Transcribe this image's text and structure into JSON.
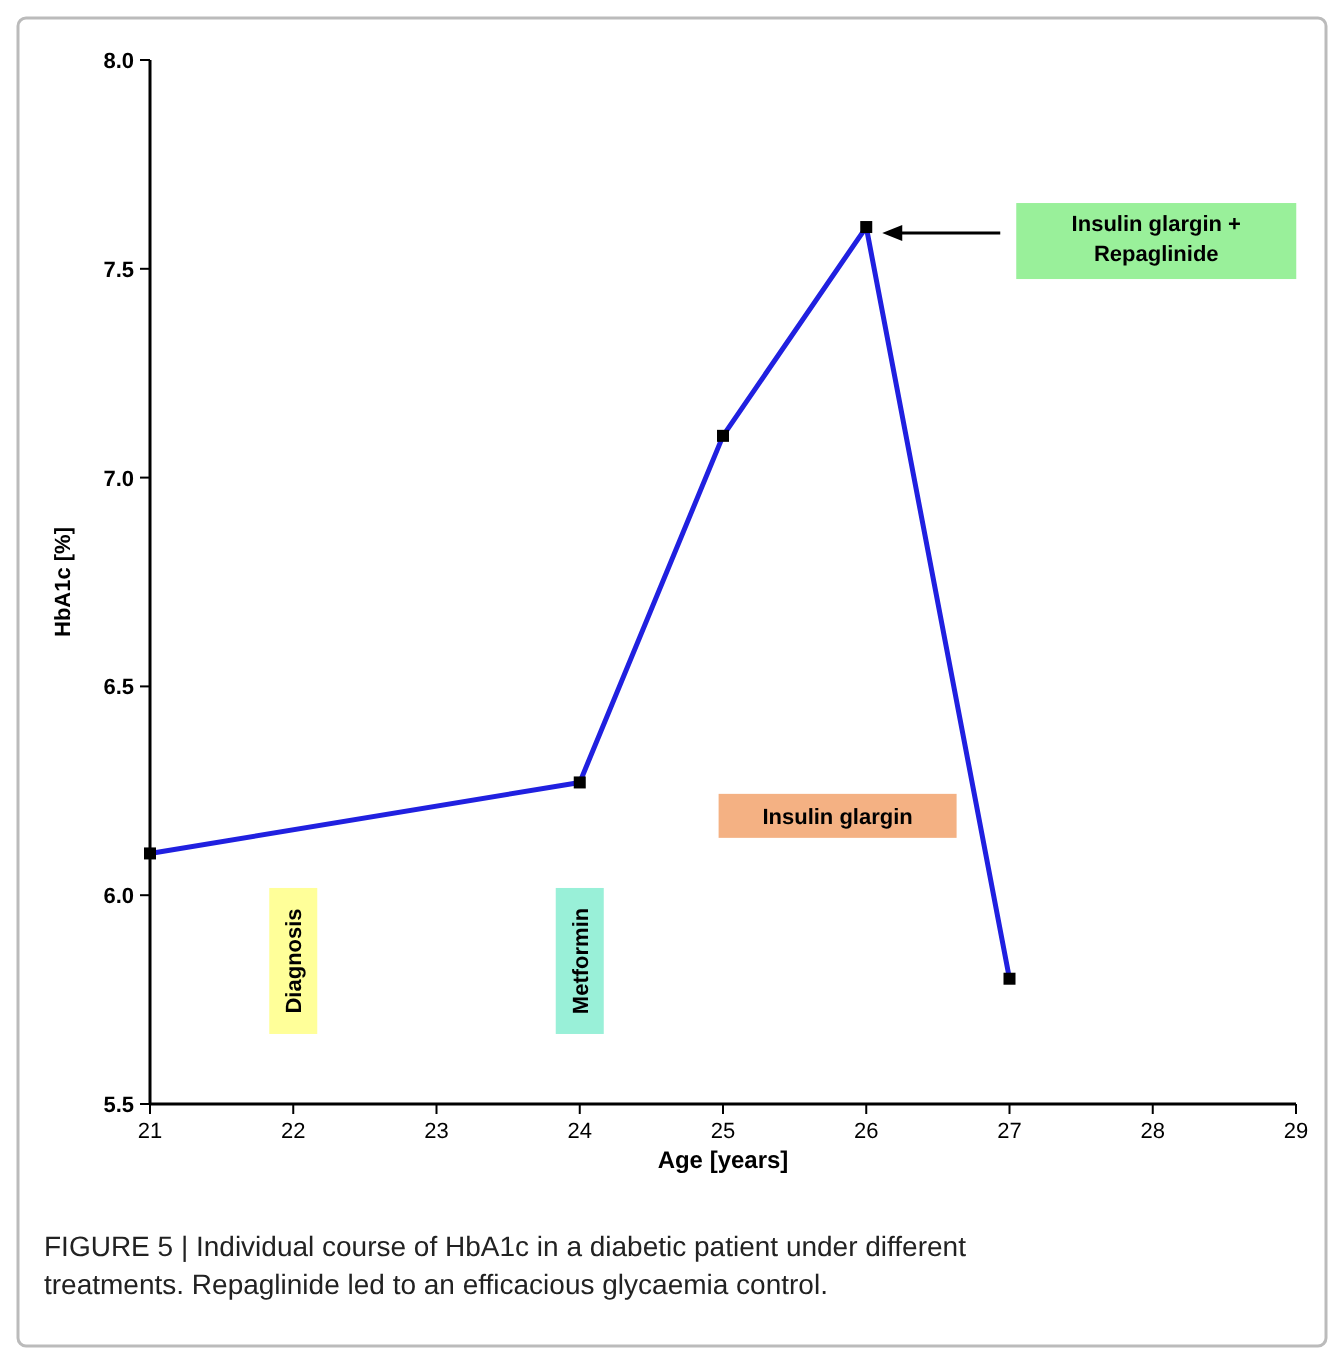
{
  "chart_data": {
    "type": "line",
    "xlabel": "Age [years]",
    "ylabel": "HbA1c [%]",
    "x": [
      21,
      24,
      25,
      26,
      27
    ],
    "series": [
      {
        "color": "#2020e0",
        "values": [
          6.1,
          6.27,
          7.1,
          7.6,
          5.8
        ]
      }
    ],
    "marker": "square",
    "line_style": "solid",
    "xlim": [
      21,
      29
    ],
    "xticks": [
      21,
      22,
      23,
      24,
      25,
      26,
      27,
      28,
      29
    ],
    "ylim": [
      5.5,
      8.0
    ],
    "yticks": [
      5.5,
      {
        "value": 6,
        "label": "6.0"
      },
      6.5,
      {
        "value": 7,
        "label": "7.0"
      },
      7.5,
      {
        "value": 8,
        "label": "8.0"
      }
    ],
    "annotations": [
      "Diagnosis",
      "Metformin",
      "Insulin glargin",
      "Insulin glargin + Repaglinide",
      "FIGURE 5 | Individual course of HbA1c in a diabetic patient under different treatments. Repaglinide led to an efficacious glycaemia control."
    ]
  }
}
